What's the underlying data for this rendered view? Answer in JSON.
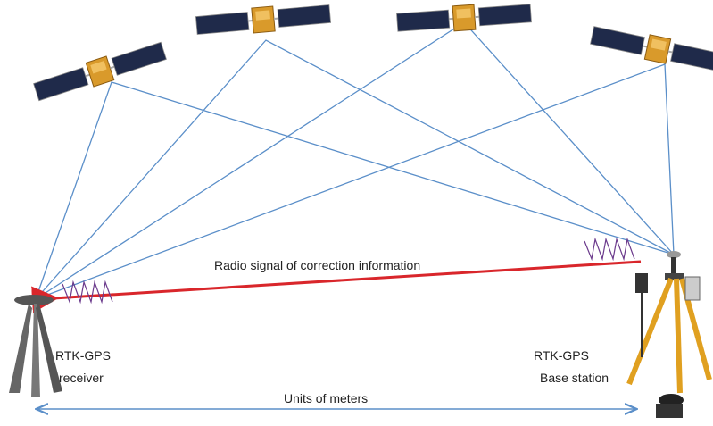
{
  "signal_label": "Radio signal of correction information",
  "receiver": {
    "lines": [
      "RTK-GPS",
      "receiver"
    ]
  },
  "base_station": {
    "lines": [
      "RTK-GPS",
      "Base station"
    ]
  },
  "distance_label": "Units of meters"
}
